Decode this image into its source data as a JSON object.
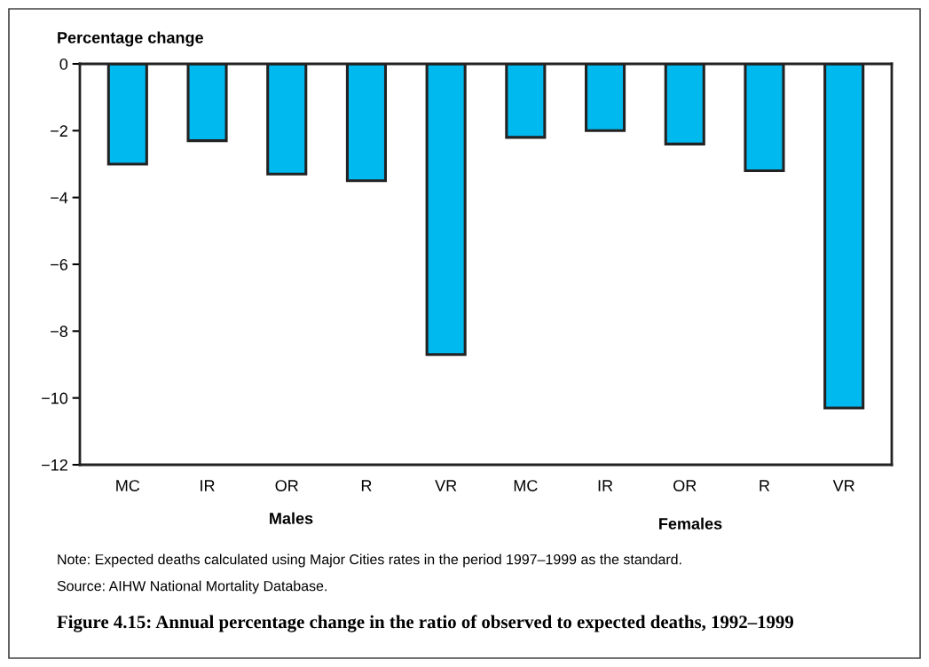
{
  "chart_data": {
    "type": "bar",
    "title": "Figure 4.15: Annual percentage change in the ratio of observed to expected deaths, 1992–1999",
    "ylabel": "Percentage change",
    "categories": [
      "MC",
      "IR",
      "OR",
      "R",
      "VR",
      "MC",
      "IR",
      "OR",
      "R",
      "VR"
    ],
    "values": [
      -3.0,
      -2.3,
      -3.3,
      -3.5,
      -8.7,
      -2.2,
      -2.0,
      -2.4,
      -3.2,
      -10.3
    ],
    "color": "#00b9ef",
    "ylim": [
      -12,
      0
    ],
    "yticks": [
      {
        "value": -12,
        "label": "−12"
      },
      {
        "value": -10,
        "label": "−10"
      },
      {
        "value": -8,
        "label": "−8"
      },
      {
        "value": -6,
        "label": "−6"
      },
      {
        "value": -4,
        "label": "−4"
      },
      {
        "value": -2,
        "label": "−2"
      },
      0
    ],
    "annotations": [
      "Males",
      "Females",
      "Note: Expected deaths calculated using Major Cities rates in the period 1997–1999 as the standard.",
      "Source: AIHW National Mortality Database."
    ]
  }
}
